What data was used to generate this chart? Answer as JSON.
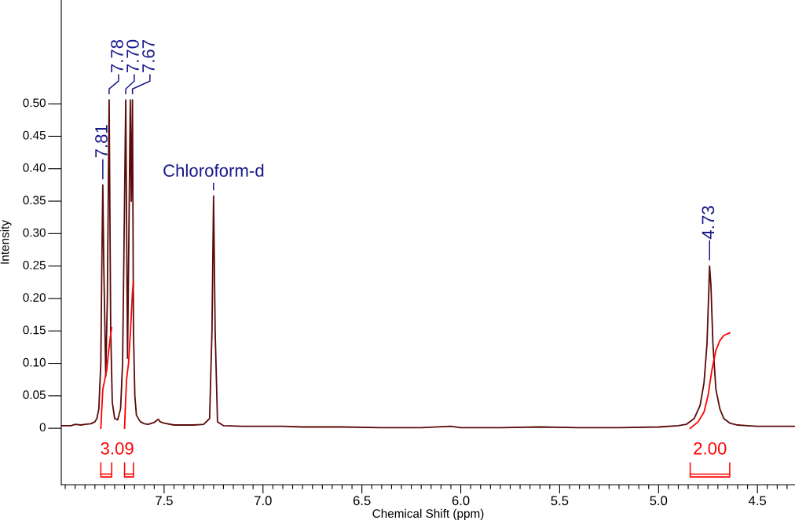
{
  "chart_data": {
    "type": "line",
    "xlabel": "Chemical Shift (ppm)",
    "ylabel": "Intensity",
    "xlim": [
      8.02,
      4.31
    ],
    "ylim": [
      -0.087,
      0.66
    ],
    "xticks": [
      {
        "value": 8.0,
        "label": null
      },
      {
        "value": 7.95,
        "label": null
      },
      {
        "value": 7.9,
        "label": null
      },
      {
        "value": 7.85,
        "label": null
      },
      {
        "value": 7.8,
        "label": null
      },
      {
        "value": 7.75,
        "label": null
      },
      {
        "value": 7.7,
        "label": null
      },
      {
        "value": 7.65,
        "label": null
      },
      {
        "value": 7.6,
        "label": null
      },
      {
        "value": 7.55,
        "label": null
      },
      7.5,
      {
        "value": 7.45,
        "label": null
      },
      {
        "value": 7.4,
        "label": null
      },
      {
        "value": 7.35,
        "label": null
      },
      {
        "value": 7.3,
        "label": null
      },
      {
        "value": 7.25,
        "label": null
      },
      {
        "value": 7.2,
        "label": null
      },
      {
        "value": 7.15,
        "label": null
      },
      {
        "value": 7.1,
        "label": null
      },
      {
        "value": 7.05,
        "label": null
      },
      {
        "value": 7.0,
        "label": "7.0"
      },
      {
        "value": 6.95,
        "label": null
      },
      {
        "value": 6.9,
        "label": null
      },
      {
        "value": 6.85,
        "label": null
      },
      {
        "value": 6.8,
        "label": null
      },
      {
        "value": 6.75,
        "label": null
      },
      {
        "value": 6.7,
        "label": null
      },
      {
        "value": 6.65,
        "label": null
      },
      {
        "value": 6.6,
        "label": null
      },
      {
        "value": 6.55,
        "label": null
      },
      6.5,
      {
        "value": 6.45,
        "label": null
      },
      {
        "value": 6.4,
        "label": null
      },
      {
        "value": 6.35,
        "label": null
      },
      {
        "value": 6.3,
        "label": null
      },
      {
        "value": 6.25,
        "label": null
      },
      {
        "value": 6.2,
        "label": null
      },
      {
        "value": 6.15,
        "label": null
      },
      {
        "value": 6.1,
        "label": null
      },
      {
        "value": 6.05,
        "label": null
      },
      {
        "value": 6.0,
        "label": "6.0"
      },
      {
        "value": 5.95,
        "label": null
      },
      {
        "value": 5.9,
        "label": null
      },
      {
        "value": 5.85,
        "label": null
      },
      {
        "value": 5.8,
        "label": null
      },
      {
        "value": 5.75,
        "label": null
      },
      {
        "value": 5.7,
        "label": null
      },
      {
        "value": 5.65,
        "label": null
      },
      {
        "value": 5.6,
        "label": null
      },
      {
        "value": 5.55,
        "label": null
      },
      5.5,
      {
        "value": 5.45,
        "label": null
      },
      {
        "value": 5.4,
        "label": null
      },
      {
        "value": 5.35,
        "label": null
      },
      {
        "value": 5.3,
        "label": null
      },
      {
        "value": 5.25,
        "label": null
      },
      {
        "value": 5.2,
        "label": null
      },
      {
        "value": 5.15,
        "label": null
      },
      {
        "value": 5.1,
        "label": null
      },
      {
        "value": 5.05,
        "label": null
      },
      {
        "value": 5.0,
        "label": "5.0"
      },
      {
        "value": 4.95,
        "label": null
      },
      {
        "value": 4.9,
        "label": null
      },
      {
        "value": 4.85,
        "label": null
      },
      {
        "value": 4.8,
        "label": null
      },
      {
        "value": 4.75,
        "label": null
      },
      {
        "value": 4.7,
        "label": null
      },
      {
        "value": 4.65,
        "label": null
      },
      {
        "value": 4.6,
        "label": null
      },
      {
        "value": 4.55,
        "label": null
      },
      4.5,
      {
        "value": 4.45,
        "label": null
      },
      {
        "value": 4.4,
        "label": null
      },
      {
        "value": 4.35,
        "label": null
      }
    ],
    "yticks": [
      0,
      0.05,
      {
        "value": 0.1,
        "label": "0.10"
      },
      0.15,
      {
        "value": 0.2,
        "label": "0.20"
      },
      0.25,
      {
        "value": 0.3,
        "label": "0.30"
      },
      0.35,
      {
        "value": 0.4,
        "label": "0.40"
      },
      0.45,
      {
        "value": 0.5,
        "label": "0.50"
      }
    ],
    "grid": false,
    "legend": false,
    "marker": "none",
    "line_style": "solid",
    "series": [
      {
        "color": "#5c0a0a",
        "x": [
          8.02,
          7.97,
          7.95,
          7.92,
          7.9,
          7.87,
          7.85,
          7.84,
          7.83,
          7.82,
          7.815,
          7.81,
          7.805,
          7.795,
          7.787,
          7.778,
          7.77,
          7.762,
          7.75,
          7.735,
          7.72,
          7.71,
          7.702,
          7.694,
          7.685,
          7.678,
          7.671,
          7.666,
          7.66,
          7.655,
          7.648,
          7.64,
          7.62,
          7.6,
          7.58,
          7.55,
          7.53,
          7.52,
          7.5,
          7.45,
          7.4,
          7.35,
          7.3,
          7.27,
          7.258,
          7.25,
          7.242,
          7.23,
          7.2,
          7.1,
          7.0,
          6.9,
          6.8,
          6.6,
          6.4,
          6.2,
          6.05,
          6.0,
          5.8,
          5.6,
          5.4,
          5.2,
          5.0,
          4.9,
          4.86,
          4.82,
          4.79,
          4.77,
          4.755,
          4.745,
          4.742,
          4.735,
          4.725,
          4.71,
          4.69,
          4.67,
          4.64,
          4.6,
          4.55,
          4.5,
          4.45,
          4.4,
          4.35,
          4.31
        ],
        "values": [
          0.004,
          0.004,
          0.006,
          0.005,
          0.006,
          0.007,
          0.01,
          0.015,
          0.03,
          0.1,
          0.25,
          0.375,
          0.25,
          0.08,
          0.2,
          0.506,
          0.15,
          0.04,
          0.015,
          0.013,
          0.03,
          0.1,
          0.3,
          0.506,
          0.108,
          0.3,
          0.506,
          0.35,
          0.506,
          0.15,
          0.05,
          0.02,
          0.01,
          0.007,
          0.006,
          0.009,
          0.014,
          0.01,
          0.008,
          0.005,
          0.005,
          0.005,
          0.006,
          0.015,
          0.15,
          0.358,
          0.15,
          0.01,
          0.004,
          0.003,
          0.003,
          0.003,
          0.002,
          0.002,
          0.001,
          0.001,
          0.003,
          0.001,
          0.001,
          0.002,
          0.001,
          0.001,
          0.002,
          0.004,
          0.006,
          0.015,
          0.035,
          0.07,
          0.13,
          0.22,
          0.25,
          0.22,
          0.13,
          0.06,
          0.03,
          0.015,
          0.008,
          0.005,
          0.004,
          0.003,
          0.003,
          0.003,
          0.003,
          0.003
        ]
      },
      {
        "color": "#ff0000",
        "x": [
          7.82,
          7.815,
          7.81,
          7.8,
          7.79,
          7.78,
          7.77,
          7.765
        ],
        "values": [
          0.0,
          0.03,
          0.06,
          0.075,
          0.09,
          0.12,
          0.145,
          0.155
        ]
      },
      {
        "color": "#ff0000",
        "x": [
          7.7,
          7.695,
          7.69,
          7.68,
          7.67,
          7.66,
          7.655
        ],
        "values": [
          0.0,
          0.04,
          0.075,
          0.1,
          0.15,
          0.21,
          0.225
        ]
      },
      {
        "color": "#ff0000",
        "x": [
          4.84,
          4.8,
          4.77,
          4.75,
          4.73,
          4.71,
          4.69,
          4.67,
          4.64
        ],
        "values": [
          0.0,
          0.01,
          0.025,
          0.05,
          0.09,
          0.12,
          0.135,
          0.143,
          0.147
        ]
      }
    ],
    "annotations": [
      {
        "text": "7.81",
        "x": 7.81,
        "y": 0.375
      },
      {
        "text": "7.78",
        "x": 7.778,
        "y": 0.506
      },
      {
        "text": "7.70",
        "x": 7.694,
        "y": 0.506
      },
      {
        "text": "7.67",
        "x": 7.66,
        "y": 0.506
      },
      {
        "text": "Chloroform-d",
        "x": 7.25,
        "y": 0.358
      },
      {
        "text": "4.73",
        "x": 4.742,
        "y": 0.25
      },
      "3.09",
      "2.00"
    ]
  }
}
